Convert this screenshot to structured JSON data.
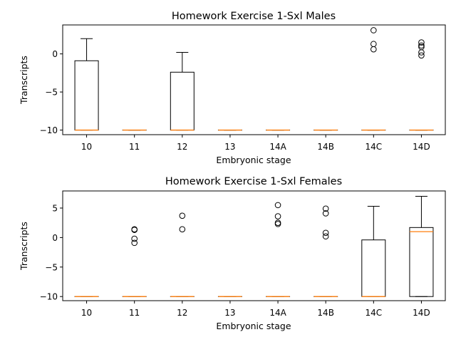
{
  "chart_data": [
    {
      "type": "box",
      "title": "Homework Exercise 1-Sxl Males",
      "xlabel": "Embryonic stage",
      "ylabel": "Transcripts",
      "categories": [
        "10",
        "11",
        "12",
        "13",
        "14A",
        "14B",
        "14C",
        "14D"
      ],
      "ylim": [
        -10.6,
        3.8
      ],
      "yticks": [
        0,
        -5,
        -10
      ],
      "ytick_labels": [
        "0",
        "−5",
        "−10"
      ],
      "boxes": [
        {
          "whislo": -10,
          "q1": -10,
          "med": -10,
          "q3": -0.9,
          "whishi": 2.0,
          "fliers": []
        },
        {
          "whislo": -10,
          "q1": -10,
          "med": -10,
          "q3": -10,
          "whishi": -10,
          "fliers": []
        },
        {
          "whislo": -10,
          "q1": -10,
          "med": -10,
          "q3": -2.4,
          "whishi": 0.2,
          "fliers": []
        },
        {
          "whislo": -10,
          "q1": -10,
          "med": -10,
          "q3": -10,
          "whishi": -10,
          "fliers": []
        },
        {
          "whislo": -10,
          "q1": -10,
          "med": -10,
          "q3": -10,
          "whishi": -10,
          "fliers": []
        },
        {
          "whislo": -10,
          "q1": -10,
          "med": -10,
          "q3": -10,
          "whishi": -10,
          "fliers": []
        },
        {
          "whislo": -10,
          "q1": -10,
          "med": -10,
          "q3": -10,
          "whishi": -10,
          "fliers": [
            3.1,
            1.3,
            0.6
          ]
        },
        {
          "whislo": -10,
          "q1": -10,
          "med": -10,
          "q3": -10,
          "whishi": -10,
          "fliers": [
            1.5,
            1.1,
            0.9,
            0.2,
            -0.2
          ]
        }
      ]
    },
    {
      "type": "box",
      "title": "Homework Exercise 1-Sxl Females",
      "xlabel": "Embryonic stage",
      "ylabel": "Transcripts",
      "categories": [
        "10",
        "11",
        "12",
        "13",
        "14A",
        "14B",
        "14C",
        "14D"
      ],
      "ylim": [
        -10.7,
        7.9
      ],
      "yticks": [
        5,
        0,
        -5,
        -10
      ],
      "ytick_labels": [
        "5",
        "0",
        "−5",
        "−10"
      ],
      "boxes": [
        {
          "whislo": -10,
          "q1": -10,
          "med": -10,
          "q3": -10,
          "whishi": -10,
          "fliers": []
        },
        {
          "whislo": -10,
          "q1": -10,
          "med": -10,
          "q3": -10,
          "whishi": -10,
          "fliers": [
            1.4,
            1.3,
            -0.2,
            -0.9
          ]
        },
        {
          "whislo": -10,
          "q1": -10,
          "med": -10,
          "q3": -10,
          "whishi": -10,
          "fliers": [
            3.7,
            1.4
          ]
        },
        {
          "whislo": -10,
          "q1": -10,
          "med": -10,
          "q3": -10,
          "whishi": -10,
          "fliers": []
        },
        {
          "whislo": -10,
          "q1": -10,
          "med": -10,
          "q3": -10,
          "whishi": -10,
          "fliers": [
            5.5,
            3.6,
            2.5,
            2.3
          ]
        },
        {
          "whislo": -10,
          "q1": -10,
          "med": -10,
          "q3": -10,
          "whishi": -10,
          "fliers": [
            4.9,
            4.1,
            0.8,
            0.2
          ]
        },
        {
          "whislo": -10,
          "q1": -10,
          "med": -10,
          "q3": -0.4,
          "whishi": 5.3,
          "fliers": []
        },
        {
          "whislo": -10,
          "q1": -10,
          "med": 1.0,
          "q3": 1.7,
          "whishi": 7.0,
          "fliers": []
        }
      ]
    }
  ],
  "colors": {
    "box": "#000000",
    "median": "#ff7f0e",
    "background": "#ffffff"
  }
}
